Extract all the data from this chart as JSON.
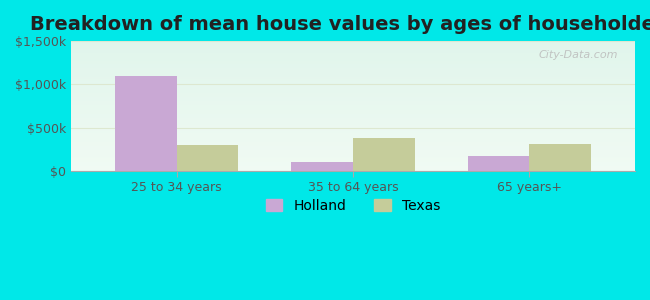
{
  "title": "Breakdown of mean house values by ages of householders",
  "categories": [
    "25 to 34 years",
    "35 to 64 years",
    "65 years+"
  ],
  "holland_values": [
    1100000,
    100000,
    175000
  ],
  "texas_values": [
    300000,
    375000,
    310000
  ],
  "holland_color": "#c9a8d4",
  "texas_color": "#c5cc9a",
  "ylim": [
    0,
    1500000
  ],
  "yticks": [
    0,
    500000,
    1000000,
    1500000
  ],
  "ytick_labels": [
    "$0",
    "$500k",
    "$1,000k",
    "$1,500k"
  ],
  "legend_labels": [
    "Holland",
    "Texas"
  ],
  "bar_width": 0.35,
  "bg_color_top": "#e0f5eb",
  "bg_color_bottom": "#f0faf3",
  "outer_bg": "#00e8e8",
  "grid_color": "#dde8d0",
  "watermark": "City-Data.com",
  "title_fontsize": 14,
  "tick_fontsize": 9,
  "legend_fontsize": 10
}
